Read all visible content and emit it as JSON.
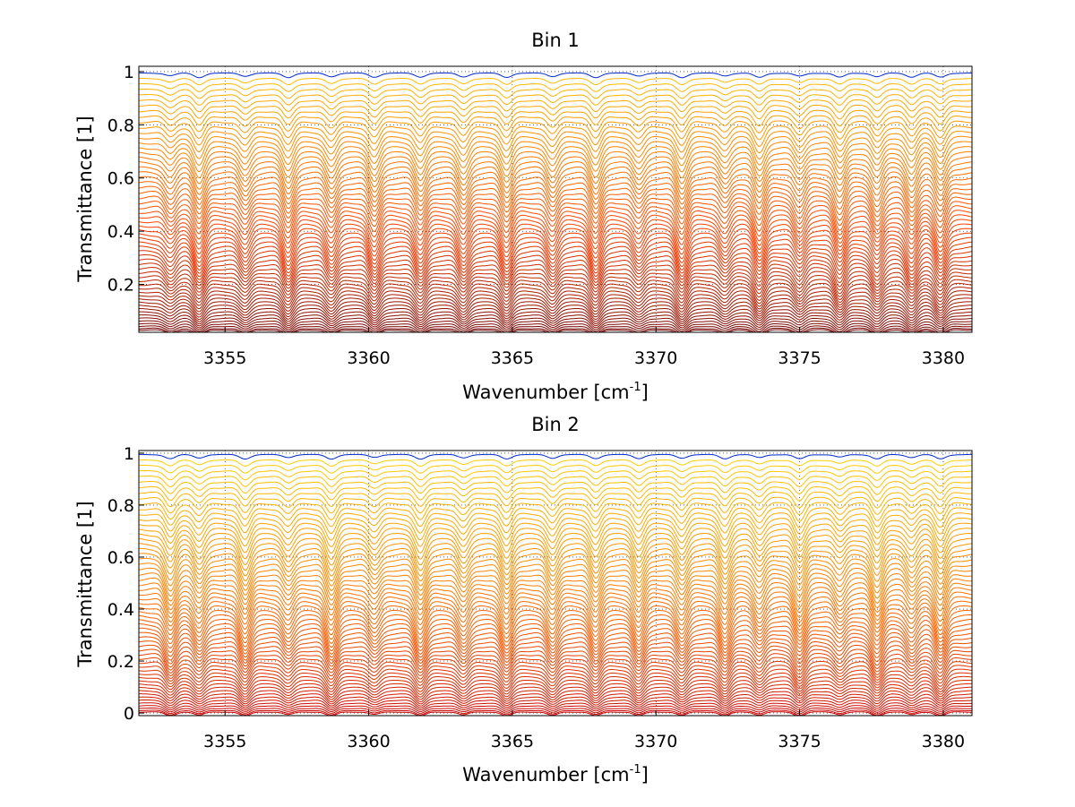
{
  "chart_data": [
    {
      "type": "line",
      "title": "Bin 1",
      "xlabel_base": "Wavenumber [cm",
      "xlabel_exp": "-1",
      "xlabel_close": "]",
      "ylabel": "Transmittance [1]",
      "xlim": [
        3352,
        3381
      ],
      "ylim": [
        0.02,
        1.02
      ],
      "xticks": [
        3355,
        3360,
        3365,
        3370,
        3375,
        3380
      ],
      "xtick_labels": [
        "3355",
        "3360",
        "3365",
        "3370",
        "3375",
        "3380"
      ],
      "yticks": [
        0.2,
        0.4,
        0.6,
        0.8,
        1
      ],
      "ytick_labels": [
        "0.2",
        "0.4",
        "0.6",
        "0.8",
        "1"
      ],
      "grid": "dotted",
      "colormap": "jet",
      "series_count": 60,
      "baseline_transmittance_range": [
        0.03,
        0.995
      ],
      "absorption_lines_cm-1": [
        3353.1,
        3354.1,
        3355.7,
        3357.2,
        3358.7,
        3360.2,
        3361.8,
        3363.3,
        3364.8,
        3366.4,
        3367.9,
        3369.4,
        3370.9,
        3372.4,
        3373.6,
        3375.0,
        3376.4,
        3377.7,
        3378.9,
        3379.9
      ],
      "colors": {
        "low": "#6e0000",
        "mid": "#ff4000",
        "high": "#ffc000",
        "top": "#0028c8"
      }
    },
    {
      "type": "line",
      "title": "Bin 2",
      "xlabel_base": "Wavenumber [cm",
      "xlabel_exp": "-1",
      "xlabel_close": "]",
      "ylabel": "Transmittance [1]",
      "xlim": [
        3352,
        3381
      ],
      "ylim": [
        -0.01,
        1.01
      ],
      "xticks": [
        3355,
        3360,
        3365,
        3370,
        3375,
        3380
      ],
      "xtick_labels": [
        "3355",
        "3360",
        "3365",
        "3370",
        "3375",
        "3380"
      ],
      "yticks": [
        0,
        0.2,
        0.4,
        0.6,
        0.8,
        1
      ],
      "ytick_labels": [
        "0",
        "0.2",
        "0.4",
        "0.6",
        "0.8",
        "1"
      ],
      "grid": "dotted",
      "colormap": "jet",
      "series_count": 60,
      "baseline_transmittance_range": [
        0.005,
        0.995
      ],
      "absorption_lines_cm-1": [
        3353.1,
        3354.1,
        3355.7,
        3357.2,
        3358.7,
        3360.2,
        3361.8,
        3363.3,
        3364.8,
        3366.4,
        3367.9,
        3369.4,
        3370.9,
        3372.4,
        3373.6,
        3375.0,
        3376.4,
        3377.7,
        3378.9,
        3379.9
      ],
      "colors": {
        "low": "#c80000",
        "mid": "#ff6a00",
        "high": "#ffd000",
        "top": "#0028c8"
      }
    }
  ]
}
